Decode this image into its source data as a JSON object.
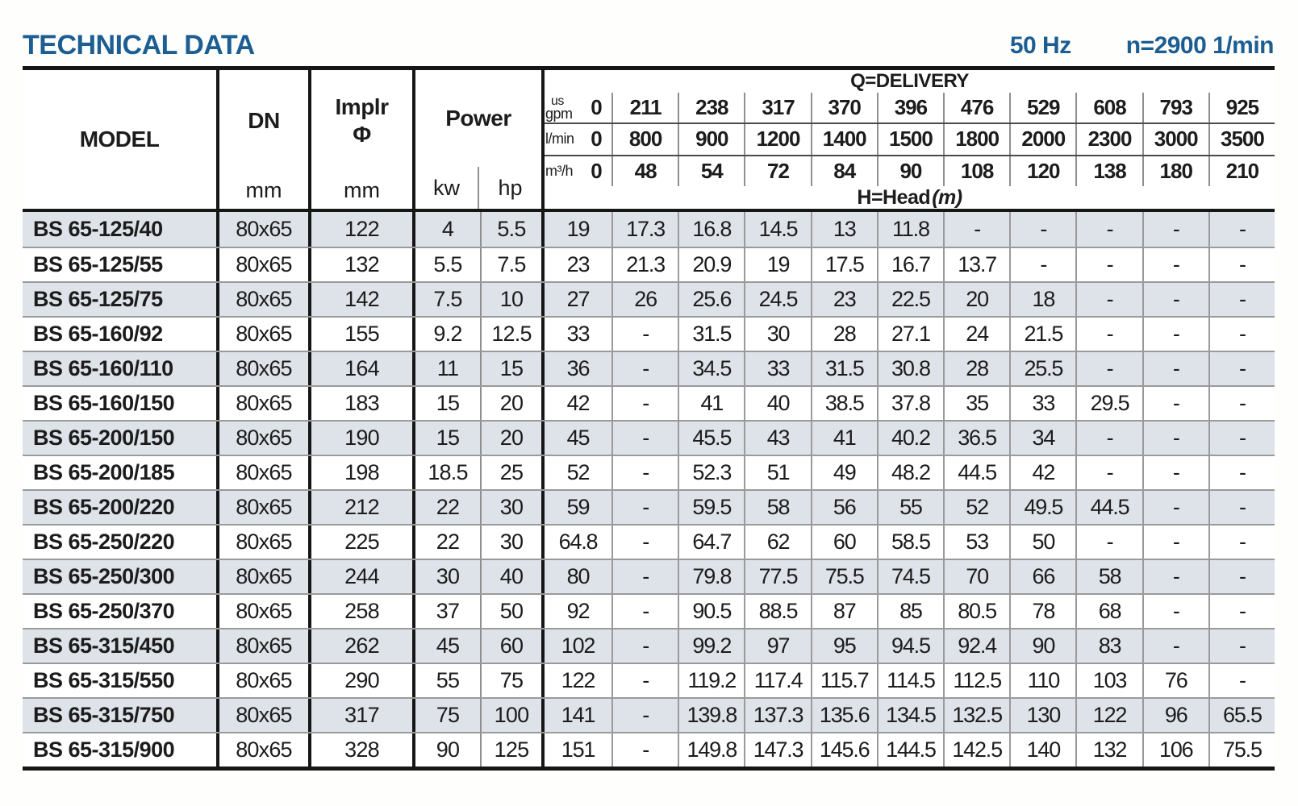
{
  "header": {
    "title": "TECHNICAL DATA",
    "frequency": "50 Hz",
    "speed": "n=2900 1/min"
  },
  "table": {
    "header": {
      "model_label": "MODEL",
      "dn_label": "DN",
      "dn_unit": "mm",
      "implr_label": "Implr",
      "implr_symbol": "Φ",
      "implr_unit": "mm",
      "power_label": "Power",
      "power_units": [
        "kw",
        "hp"
      ],
      "delivery_label": "Q=DELIVERY",
      "head_label": "H=Head",
      "head_unit": "(m)",
      "delivery_units": [
        {
          "top": "us",
          "label": "gpm",
          "zero": "0",
          "values": [
            "211",
            "238",
            "317",
            "370",
            "396",
            "476",
            "529",
            "608",
            "793",
            "925"
          ]
        },
        {
          "top": "",
          "label": "l/min",
          "zero": "0",
          "values": [
            "800",
            "900",
            "1200",
            "1400",
            "1500",
            "1800",
            "2000",
            "2300",
            "3000",
            "3500"
          ]
        },
        {
          "top": "",
          "label": "m³/h",
          "zero": "0",
          "values": [
            "48",
            "54",
            "72",
            "84",
            "90",
            "108",
            "120",
            "138",
            "180",
            "210"
          ]
        }
      ]
    },
    "rows": [
      {
        "model": "BS 65-125/40",
        "dn": "80x65",
        "implr": "122",
        "kw": "4",
        "hp": "5.5",
        "head": [
          "19",
          "17.3",
          "16.8",
          "14.5",
          "13",
          "11.8",
          "-",
          "-",
          "-",
          "-",
          "-"
        ]
      },
      {
        "model": "BS 65-125/55",
        "dn": "80x65",
        "implr": "132",
        "kw": "5.5",
        "hp": "7.5",
        "head": [
          "23",
          "21.3",
          "20.9",
          "19",
          "17.5",
          "16.7",
          "13.7",
          "-",
          "-",
          "-",
          "-"
        ]
      },
      {
        "model": "BS 65-125/75",
        "dn": "80x65",
        "implr": "142",
        "kw": "7.5",
        "hp": "10",
        "head": [
          "27",
          "26",
          "25.6",
          "24.5",
          "23",
          "22.5",
          "20",
          "18",
          "-",
          "-",
          "-"
        ]
      },
      {
        "model": "BS 65-160/92",
        "dn": "80x65",
        "implr": "155",
        "kw": "9.2",
        "hp": "12.5",
        "head": [
          "33",
          "-",
          "31.5",
          "30",
          "28",
          "27.1",
          "24",
          "21.5",
          "-",
          "-",
          "-"
        ]
      },
      {
        "model": "BS 65-160/110",
        "dn": "80x65",
        "implr": "164",
        "kw": "11",
        "hp": "15",
        "head": [
          "36",
          "-",
          "34.5",
          "33",
          "31.5",
          "30.8",
          "28",
          "25.5",
          "-",
          "-",
          "-"
        ]
      },
      {
        "model": "BS 65-160/150",
        "dn": "80x65",
        "implr": "183",
        "kw": "15",
        "hp": "20",
        "head": [
          "42",
          "-",
          "41",
          "40",
          "38.5",
          "37.8",
          "35",
          "33",
          "29.5",
          "-",
          "-"
        ]
      },
      {
        "model": "BS 65-200/150",
        "dn": "80x65",
        "implr": "190",
        "kw": "15",
        "hp": "20",
        "head": [
          "45",
          "-",
          "45.5",
          "43",
          "41",
          "40.2",
          "36.5",
          "34",
          "-",
          "-",
          "-"
        ]
      },
      {
        "model": "BS 65-200/185",
        "dn": "80x65",
        "implr": "198",
        "kw": "18.5",
        "hp": "25",
        "head": [
          "52",
          "-",
          "52.3",
          "51",
          "49",
          "48.2",
          "44.5",
          "42",
          "-",
          "-",
          "-"
        ]
      },
      {
        "model": "BS 65-200/220",
        "dn": "80x65",
        "implr": "212",
        "kw": "22",
        "hp": "30",
        "head": [
          "59",
          "-",
          "59.5",
          "58",
          "56",
          "55",
          "52",
          "49.5",
          "44.5",
          "-",
          "-"
        ]
      },
      {
        "model": "BS 65-250/220",
        "dn": "80x65",
        "implr": "225",
        "kw": "22",
        "hp": "30",
        "head": [
          "64.8",
          "-",
          "64.7",
          "62",
          "60",
          "58.5",
          "53",
          "50",
          "-",
          "-",
          "-"
        ]
      },
      {
        "model": "BS 65-250/300",
        "dn": "80x65",
        "implr": "244",
        "kw": "30",
        "hp": "40",
        "head": [
          "80",
          "-",
          "79.8",
          "77.5",
          "75.5",
          "74.5",
          "70",
          "66",
          "58",
          "-",
          "-"
        ]
      },
      {
        "model": "BS 65-250/370",
        "dn": "80x65",
        "implr": "258",
        "kw": "37",
        "hp": "50",
        "head": [
          "92",
          "-",
          "90.5",
          "88.5",
          "87",
          "85",
          "80.5",
          "78",
          "68",
          "-",
          "-"
        ]
      },
      {
        "model": "BS 65-315/450",
        "dn": "80x65",
        "implr": "262",
        "kw": "45",
        "hp": "60",
        "head": [
          "102",
          "-",
          "99.2",
          "97",
          "95",
          "94.5",
          "92.4",
          "90",
          "83",
          "-",
          "-"
        ]
      },
      {
        "model": "BS 65-315/550",
        "dn": "80x65",
        "implr": "290",
        "kw": "55",
        "hp": "75",
        "head": [
          "122",
          "-",
          "119.2",
          "117.4",
          "115.7",
          "114.5",
          "112.5",
          "110",
          "103",
          "76",
          "-"
        ]
      },
      {
        "model": "BS 65-315/750",
        "dn": "80x65",
        "implr": "317",
        "kw": "75",
        "hp": "100",
        "head": [
          "141",
          "-",
          "139.8",
          "137.3",
          "135.6",
          "134.5",
          "132.5",
          "130",
          "122",
          "96",
          "65.5"
        ]
      },
      {
        "model": "BS 65-315/900",
        "dn": "80x65",
        "implr": "328",
        "kw": "90",
        "hp": "125",
        "head": [
          "151",
          "-",
          "149.8",
          "147.3",
          "145.6",
          "144.5",
          "142.5",
          "140",
          "132",
          "106",
          "75.5"
        ]
      }
    ]
  },
  "colors": {
    "accent_blue": "#1d5e92",
    "row_shade": "#dee3e9",
    "grid_thin": "#9a9a9a",
    "grid_thick": "#161616"
  }
}
